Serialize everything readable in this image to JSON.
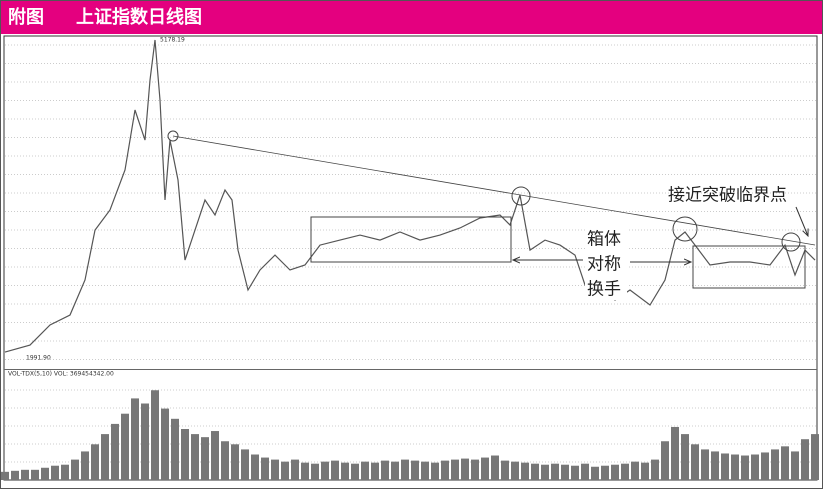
{
  "chart_data": {
    "type": "line",
    "title_prefix": "附图",
    "title": "上证指数日线图",
    "high_label": "5178.19",
    "low_label": "1991.90",
    "annotations": [
      "箱体",
      "对称",
      "换手",
      "接近突破临界点"
    ],
    "vol_legend": "VOL-TDX(5,10) VOL: 369454342.00",
    "x": [
      0,
      25,
      45,
      65,
      80,
      90,
      105,
      120,
      130,
      140,
      145,
      150,
      155,
      160,
      165,
      173,
      180,
      190,
      200,
      210,
      220,
      227,
      233,
      243,
      255,
      270,
      285,
      300,
      315,
      335,
      355,
      375,
      395,
      415,
      435,
      455,
      475,
      495,
      505,
      515,
      525,
      540,
      555,
      570,
      580,
      595,
      610,
      625,
      645,
      660,
      670,
      680,
      690,
      705,
      725,
      745,
      765,
      780,
      790,
      800,
      810
    ],
    "series": [
      {
        "name": "上证指数",
        "color": "#555555",
        "values": [
          1991.9,
          2064,
          2269,
          2371,
          2728,
          3238,
          3443,
          3851,
          4464,
          4157,
          4770,
          5178.19,
          4566,
          3545,
          4157,
          3749,
          2932,
          3238,
          3545,
          3392,
          3647,
          3545,
          3034,
          2626,
          2830,
          2983,
          2830,
          2881,
          3085,
          3136,
          3187,
          3136,
          3218,
          3136,
          3187,
          3259,
          3361,
          3392,
          3290,
          3596,
          3034,
          3136,
          3085,
          2983,
          2677,
          2728,
          2524,
          2626,
          2473,
          2728,
          3136,
          3218,
          3085,
          2881,
          2912,
          2912,
          2881,
          3085,
          2779,
          3034,
          2932
        ]
      }
    ],
    "xlim": [
      0,
      810
    ],
    "ylim": [
      1830,
      5209
    ],
    "volume": {
      "x": [
        0,
        10,
        20,
        30,
        40,
        50,
        60,
        70,
        80,
        90,
        100,
        110,
        120,
        130,
        140,
        150,
        160,
        170,
        180,
        190,
        200,
        210,
        220,
        230,
        240,
        250,
        260,
        270,
        280,
        290,
        300,
        310,
        320,
        330,
        340,
        350,
        360,
        370,
        380,
        390,
        400,
        410,
        420,
        430,
        440,
        450,
        460,
        470,
        480,
        490,
        500,
        510,
        520,
        530,
        540,
        550,
        560,
        570,
        580,
        590,
        600,
        610,
        620,
        630,
        640,
        650,
        660,
        670,
        680,
        690,
        700,
        710,
        720,
        730,
        740,
        750,
        760,
        770,
        780,
        790,
        800,
        810
      ],
      "values": [
        8,
        9,
        10,
        10,
        12,
        14,
        15,
        20,
        28,
        35,
        45,
        55,
        65,
        80,
        75,
        88,
        70,
        60,
        50,
        45,
        42,
        48,
        38,
        35,
        30,
        25,
        22,
        20,
        18,
        20,
        17,
        16,
        18,
        19,
        17,
        16,
        18,
        17,
        19,
        18,
        20,
        19,
        18,
        17,
        19,
        20,
        21,
        20,
        22,
        24,
        19,
        18,
        17,
        16,
        15,
        16,
        15,
        14,
        16,
        13,
        14,
        15,
        16,
        18,
        17,
        20,
        38,
        52,
        45,
        35,
        30,
        28,
        26,
        25,
        24,
        25,
        27,
        30,
        33,
        28,
        40,
        45
      ],
      "color": "#777777",
      "ylim": [
        0,
        100
      ]
    }
  }
}
